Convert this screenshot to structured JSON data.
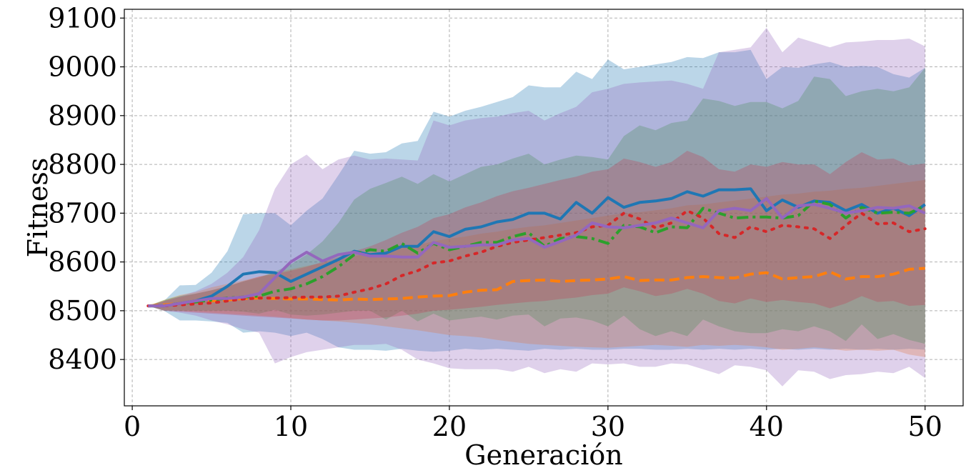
{
  "chart_data": {
    "type": "line",
    "title": "",
    "xlabel": "Generación",
    "ylabel": "Fitness",
    "xlim": [
      -0.5,
      52.4
    ],
    "ylim": [
      8305,
      9118
    ],
    "xticks": [
      0,
      10,
      20,
      30,
      40,
      50
    ],
    "yticks": [
      8400,
      8500,
      8600,
      8700,
      8800,
      8900,
      9000,
      9100
    ],
    "grid": true,
    "legend": "none",
    "x": [
      1,
      2,
      3,
      4,
      5,
      6,
      7,
      8,
      9,
      10,
      11,
      12,
      13,
      14,
      15,
      16,
      17,
      18,
      19,
      20,
      21,
      22,
      23,
      24,
      25,
      26,
      27,
      28,
      29,
      30,
      31,
      32,
      33,
      34,
      35,
      36,
      37,
      38,
      39,
      40,
      41,
      42,
      43,
      44,
      45,
      46,
      47,
      48,
      49,
      50
    ],
    "series": [
      {
        "color": "#1f77b4",
        "dash": "solid",
        "mean": [
          8510,
          8510,
          8515,
          8520,
          8530,
          8550,
          8575,
          8580,
          8578,
          8560,
          8575,
          8590,
          8605,
          8622,
          8615,
          8618,
          8632,
          8632,
          8662,
          8652,
          8667,
          8672,
          8682,
          8687,
          8700,
          8700,
          8688,
          8722,
          8700,
          8732,
          8712,
          8722,
          8725,
          8730,
          8744,
          8735,
          8748,
          8748,
          8750,
          8705,
          8727,
          8712,
          8725,
          8722,
          8705,
          8718,
          8700,
          8710,
          8695,
          8718
        ],
        "upper": [
          8510,
          8520,
          8552,
          8553,
          8578,
          8622,
          8698,
          8700,
          8700,
          8675,
          8705,
          8730,
          8778,
          8828,
          8822,
          8825,
          8843,
          8848,
          8908,
          8898,
          8910,
          8918,
          8928,
          8938,
          8962,
          8958,
          8958,
          8990,
          8975,
          9015,
          8995,
          9000,
          9005,
          9010,
          9020,
          9018,
          9030,
          9030,
          9035,
          8975,
          9000,
          8998,
          9005,
          9010,
          9000,
          9002,
          9000,
          8985,
          8978,
          8998
        ],
        "lower": [
          8510,
          8500,
          8480,
          8480,
          8478,
          8475,
          8455,
          8458,
          8455,
          8448,
          8455,
          8442,
          8425,
          8420,
          8420,
          8418,
          8422,
          8418,
          8416,
          8418,
          8422,
          8420,
          8422,
          8420,
          8418,
          8422,
          8420,
          8422,
          8420,
          8420,
          8422,
          8422,
          8420,
          8420,
          8422,
          8420,
          8422,
          8420,
          8422,
          8420,
          8422,
          8420,
          8422,
          8420,
          8422,
          8420,
          8422,
          8420,
          8422,
          8420
        ]
      },
      {
        "color": "#ff7f0e",
        "dash": "dashed",
        "mean": [
          8510,
          8512,
          8515,
          8518,
          8520,
          8522,
          8525,
          8526,
          8525,
          8524,
          8524,
          8523,
          8522,
          8524,
          8523,
          8524,
          8525,
          8528,
          8530,
          8531,
          8538,
          8542,
          8543,
          8560,
          8562,
          8563,
          8560,
          8562,
          8563,
          8565,
          8570,
          8562,
          8563,
          8563,
          8568,
          8570,
          8568,
          8567,
          8575,
          8578,
          8565,
          8568,
          8570,
          8580,
          8565,
          8570,
          8570,
          8575,
          8585,
          8587
        ],
        "upper": [
          8510,
          8522,
          8532,
          8538,
          8548,
          8555,
          8562,
          8570,
          8578,
          8585,
          8592,
          8598,
          8605,
          8612,
          8618,
          8622,
          8628,
          8635,
          8642,
          8648,
          8652,
          8658,
          8662,
          8668,
          8672,
          8675,
          8680,
          8685,
          8690,
          8695,
          8700,
          8702,
          8706,
          8710,
          8716,
          8718,
          8722,
          8726,
          8730,
          8734,
          8738,
          8740,
          8744,
          8746,
          8750,
          8752,
          8756,
          8760,
          8764,
          8768
        ],
        "lower": [
          8510,
          8502,
          8500,
          8498,
          8496,
          8494,
          8492,
          8490,
          8488,
          8485,
          8482,
          8480,
          8478,
          8475,
          8472,
          8468,
          8464,
          8460,
          8455,
          8450,
          8448,
          8445,
          8440,
          8436,
          8432,
          8430,
          8428,
          8426,
          8425,
          8424,
          8426,
          8428,
          8430,
          8428,
          8426,
          8430,
          8428,
          8430,
          8428,
          8425,
          8420,
          8422,
          8425,
          8422,
          8418,
          8420,
          8418,
          8420,
          8410,
          8405
        ]
      },
      {
        "color": "#2ca02c",
        "dash": "dashdot",
        "mean": [
          8510,
          8510,
          8515,
          8518,
          8522,
          8526,
          8528,
          8530,
          8540,
          8545,
          8555,
          8570,
          8590,
          8615,
          8625,
          8622,
          8638,
          8618,
          8638,
          8625,
          8632,
          8640,
          8640,
          8652,
          8660,
          8632,
          8648,
          8652,
          8648,
          8638,
          8675,
          8672,
          8660,
          8672,
          8670,
          8710,
          8700,
          8690,
          8692,
          8692,
          8690,
          8695,
          8725,
          8718,
          8690,
          8712,
          8700,
          8702,
          8700,
          8715
        ],
        "upper": [
          8510,
          8522,
          8530,
          8535,
          8542,
          8550,
          8560,
          8568,
          8580,
          8595,
          8615,
          8642,
          8680,
          8728,
          8750,
          8762,
          8775,
          8760,
          8780,
          8765,
          8780,
          8795,
          8800,
          8812,
          8822,
          8800,
          8810,
          8818,
          8815,
          8810,
          8858,
          8880,
          8870,
          8885,
          8890,
          8935,
          8930,
          8920,
          8928,
          8928,
          8915,
          8930,
          8980,
          8975,
          8940,
          8950,
          8955,
          8950,
          8958,
          8998
        ],
        "lower": [
          8510,
          8500,
          8500,
          8500,
          8500,
          8500,
          8498,
          8494,
          8502,
          8492,
          8490,
          8492,
          8496,
          8500,
          8500,
          8482,
          8500,
          8478,
          8494,
          8480,
          8484,
          8488,
          8482,
          8490,
          8492,
          8468,
          8484,
          8486,
          8480,
          8468,
          8490,
          8462,
          8448,
          8458,
          8448,
          8482,
          8468,
          8458,
          8454,
          8454,
          8462,
          8458,
          8468,
          8458,
          8438,
          8472,
          8442,
          8452,
          8440,
          8432
        ]
      },
      {
        "color": "#d62728",
        "dash": "dotted",
        "mean": [
          8510,
          8510,
          8512,
          8514,
          8516,
          8520,
          8524,
          8526,
          8526,
          8527,
          8528,
          8528,
          8530,
          8538,
          8545,
          8555,
          8572,
          8582,
          8598,
          8602,
          8612,
          8620,
          8632,
          8640,
          8645,
          8650,
          8655,
          8660,
          8672,
          8675,
          8700,
          8688,
          8670,
          8680,
          8705,
          8690,
          8658,
          8650,
          8672,
          8662,
          8675,
          8672,
          8668,
          8648,
          8675,
          8700,
          8678,
          8680,
          8662,
          8668
        ],
        "upper": [
          8510,
          8520,
          8528,
          8535,
          8542,
          8550,
          8560,
          8570,
          8575,
          8582,
          8590,
          8600,
          8610,
          8622,
          8632,
          8645,
          8660,
          8672,
          8690,
          8698,
          8712,
          8722,
          8735,
          8745,
          8752,
          8760,
          8768,
          8775,
          8785,
          8790,
          8812,
          8805,
          8795,
          8805,
          8828,
          8815,
          8790,
          8785,
          8800,
          8795,
          8805,
          8800,
          8800,
          8780,
          8805,
          8825,
          8810,
          8812,
          8798,
          8802
        ],
        "lower": [
          8510,
          8500,
          8498,
          8496,
          8494,
          8492,
          8490,
          8488,
          8486,
          8484,
          8482,
          8480,
          8480,
          8482,
          8484,
          8486,
          8490,
          8494,
          8500,
          8502,
          8505,
          8508,
          8512,
          8515,
          8518,
          8520,
          8524,
          8527,
          8532,
          8535,
          8548,
          8540,
          8530,
          8535,
          8545,
          8535,
          8520,
          8515,
          8525,
          8518,
          8522,
          8518,
          8515,
          8505,
          8515,
          8530,
          8518,
          8520,
          8510,
          8512
        ]
      },
      {
        "color": "#9467bd",
        "dash": "solid",
        "mean": [
          8510,
          8510,
          8515,
          8520,
          8525,
          8525,
          8528,
          8535,
          8568,
          8600,
          8620,
          8602,
          8615,
          8620,
          8612,
          8612,
          8610,
          8610,
          8640,
          8630,
          8632,
          8635,
          8635,
          8645,
          8648,
          8630,
          8642,
          8655,
          8680,
          8672,
          8670,
          8675,
          8680,
          8690,
          8680,
          8670,
          8705,
          8710,
          8705,
          8730,
          8690,
          8715,
          8718,
          8710,
          8700,
          8705,
          8712,
          8710,
          8715,
          8700
        ],
        "upper": [
          8510,
          8520,
          8530,
          8540,
          8555,
          8578,
          8610,
          8665,
          8750,
          8800,
          8820,
          8790,
          8810,
          8818,
          8810,
          8812,
          8810,
          8808,
          8890,
          8880,
          8890,
          8895,
          8898,
          8905,
          8910,
          8890,
          8905,
          8918,
          8948,
          8955,
          8965,
          8968,
          8970,
          8972,
          8965,
          8955,
          9030,
          9035,
          9040,
          9080,
          9030,
          9060,
          9050,
          9040,
          9050,
          9052,
          9055,
          9055,
          9058,
          9042
        ],
        "lower": [
          8510,
          8500,
          8496,
          8490,
          8480,
          8472,
          8462,
          8455,
          8392,
          8405,
          8415,
          8420,
          8425,
          8430,
          8430,
          8432,
          8420,
          8400,
          8392,
          8382,
          8380,
          8380,
          8380,
          8375,
          8385,
          8372,
          8380,
          8375,
          8392,
          8390,
          8392,
          8385,
          8385,
          8392,
          8390,
          8380,
          8370,
          8388,
          8385,
          8378,
          8345,
          8378,
          8375,
          8360,
          8368,
          8370,
          8375,
          8372,
          8385,
          8362
        ]
      }
    ]
  }
}
